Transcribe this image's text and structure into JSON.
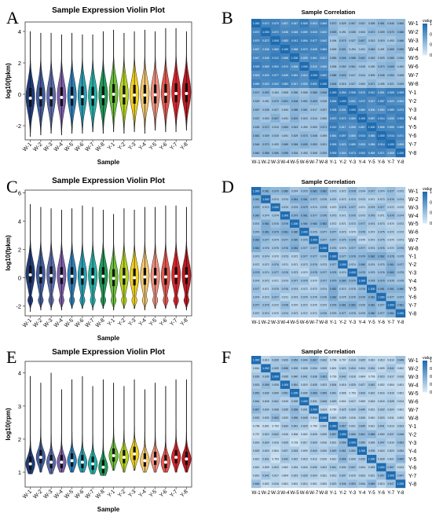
{
  "colors": {
    "violins": [
      "#1f3a78",
      "#3f5c9d",
      "#5a6aa8",
      "#7b5ea7",
      "#8e5fb0",
      "#2f7fb6",
      "#2a9fb4",
      "#25b0a8",
      "#1f9a5a",
      "#6bbf3a",
      "#b6d21f",
      "#f2d21e",
      "#f3c76e",
      "#f2b39a",
      "#ef8f7c",
      "#e5584e",
      "#d6262c",
      "#bb1a22"
    ],
    "heat_low": "#d6e8f6",
    "heat_high": "#1f6cb0"
  },
  "panels": [
    {
      "letter": "A",
      "chart_data": {
        "type": "violin",
        "title": "Sample Expression Violin Plot",
        "xlabel": "Sample",
        "ylabel": "log10(fpkm)",
        "ylim": [
          -2.9,
          4.6
        ],
        "yticks": [
          -2,
          0,
          2,
          4
        ],
        "categories": [
          "W-1",
          "W-2",
          "W-3",
          "W-4",
          "W-5",
          "W-6",
          "W-7",
          "W-8",
          "Y-1",
          "Y-2",
          "Y-3",
          "Y-4",
          "Y-5",
          "Y-6",
          "Y-7",
          "Y-8"
        ],
        "medians": [
          -0.25,
          -0.22,
          -0.22,
          -0.2,
          -0.18,
          -0.15,
          -0.18,
          -0.15,
          0.0,
          -0.1,
          -0.05,
          -0.05,
          -0.03,
          0.0,
          0.05,
          0.05
        ],
        "lower": [
          -2.7,
          -2.6,
          -2.5,
          -2.6,
          -2.5,
          -2.5,
          -2.4,
          -2.5,
          -2.4,
          -2.5,
          -2.4,
          -2.5,
          -2.3,
          -2.4,
          -2.4,
          -2.3
        ],
        "upper": [
          4.0,
          3.9,
          3.9,
          3.8,
          3.9,
          3.8,
          3.8,
          4.0,
          4.1,
          3.9,
          4.0,
          4.1,
          4.0,
          4.2,
          4.2,
          4.0
        ]
      }
    },
    {
      "letter": "C",
      "chart_data": {
        "type": "violin",
        "title": "Sample Expression Violin Plot",
        "xlabel": "Sample",
        "ylabel": "log10(fpkm)",
        "ylim": [
          -2.7,
          6.2
        ],
        "yticks": [
          -2,
          0,
          2,
          4,
          6
        ],
        "categories": [
          "W-1",
          "W-2",
          "W-3",
          "W-4",
          "W-5",
          "W-6",
          "W-7",
          "W-8",
          "Y-1",
          "Y-2",
          "Y-3",
          "Y-4",
          "Y-5",
          "Y-6",
          "Y-7",
          "Y-8"
        ],
        "medians": [
          0.2,
          0.15,
          0.15,
          0.1,
          0.1,
          0.05,
          0.05,
          0.1,
          -0.05,
          0.05,
          0.0,
          0.05,
          0.05,
          0.05,
          0.1,
          0.1
        ],
        "lower": [
          -2.4,
          -2.3,
          -2.3,
          -2.3,
          -2.2,
          -2.2,
          -2.3,
          -2.2,
          -2.3,
          -2.2,
          -2.2,
          -2.3,
          -2.2,
          -2.2,
          -2.2,
          -2.3
        ],
        "upper": [
          5.2,
          5.0,
          4.9,
          4.8,
          4.9,
          5.1,
          5.0,
          4.8,
          4.5,
          4.9,
          4.8,
          5.0,
          5.0,
          5.1,
          5.1,
          5.0
        ]
      }
    },
    {
      "letter": "E",
      "chart_data": {
        "type": "violin",
        "title": "Sample Expression Violin Plot",
        "xlabel": "Sample",
        "ylabel": "log10(rpm)",
        "ylim": [
          0.55,
          4.35
        ],
        "yticks": [
          1,
          2,
          3,
          4
        ],
        "categories": [
          "W-1",
          "W-2",
          "W-3",
          "W-4",
          "W-5",
          "W-6",
          "W-7",
          "W-8",
          "Y-1",
          "Y-2",
          "Y-3",
          "Y-4",
          "Y-5",
          "Y-6",
          "Y-7",
          "Y-8"
        ],
        "medians": [
          1.25,
          1.45,
          1.3,
          1.3,
          1.35,
          1.3,
          1.25,
          1.15,
          1.5,
          1.45,
          1.55,
          1.35,
          1.4,
          1.3,
          1.45,
          1.4
        ],
        "lower": [
          0.95,
          1.0,
          0.95,
          1.0,
          1.0,
          1.0,
          0.95,
          0.9,
          1.05,
          1.0,
          1.05,
          1.0,
          1.0,
          1.0,
          1.0,
          1.0
        ],
        "upper": [
          3.9,
          3.7,
          4.0,
          3.5,
          3.8,
          3.9,
          3.6,
          3.8,
          3.7,
          3.6,
          3.8,
          3.5,
          3.7,
          3.6,
          3.8,
          3.8
        ]
      }
    },
    {
      "letter": "B",
      "chart_data": {
        "type": "heatmap",
        "title": "Sample Correlation",
        "labels": [
          "W-1",
          "W-2",
          "W-3",
          "W-4",
          "W-5",
          "W-6",
          "W-7",
          "W-8",
          "Y-1",
          "Y-2",
          "Y-3",
          "Y-4",
          "Y-5",
          "Y-6",
          "Y-7",
          "Y-8"
        ],
        "legend_title": "value",
        "legend_ticks": [
          "1.0",
          "0.8",
          "0.6",
          "0.4"
        ],
        "range": [
          0.3,
          1.0
        ],
        "block": 8,
        "diag": 1.0,
        "within": 0.86,
        "between": 0.55,
        "spread": 0.06
      }
    },
    {
      "letter": "D",
      "chart_data": {
        "type": "heatmap",
        "title": "Sample Correlation",
        "labels": [
          "W-1",
          "W-2",
          "W-3",
          "W-4",
          "W-5",
          "W-6",
          "W-7",
          "W-8",
          "Y-1",
          "Y-2",
          "Y-3",
          "Y-4",
          "Y-5",
          "Y-6",
          "Y-7",
          "Y-8"
        ],
        "legend_title": "value",
        "legend_ticks": [
          "1.00",
          "0.99",
          "0.98",
          "0.97"
        ],
        "range": [
          0.965,
          1.0
        ],
        "block": 8,
        "diag": 1.0,
        "within": 0.978,
        "between": 0.974,
        "spread": 0.004
      }
    },
    {
      "letter": "F",
      "chart_data": {
        "type": "heatmap",
        "title": "Sample Correlation",
        "labels": [
          "W-1",
          "W-2",
          "W-3",
          "W-4",
          "W-5",
          "W-6",
          "W-7",
          "W-8",
          "Y-1",
          "Y-2",
          "Y-3",
          "Y-4",
          "Y-5",
          "Y-6",
          "Y-7",
          "Y-8"
        ],
        "legend_title": "value",
        "legend_ticks": [
          "1.00",
          "0.95",
          "0.90",
          "0.85",
          "0.80"
        ],
        "range": [
          0.78,
          1.0
        ],
        "block": 8,
        "diag": 1.0,
        "within": 0.84,
        "between": 0.82,
        "spread": 0.03
      }
    }
  ]
}
